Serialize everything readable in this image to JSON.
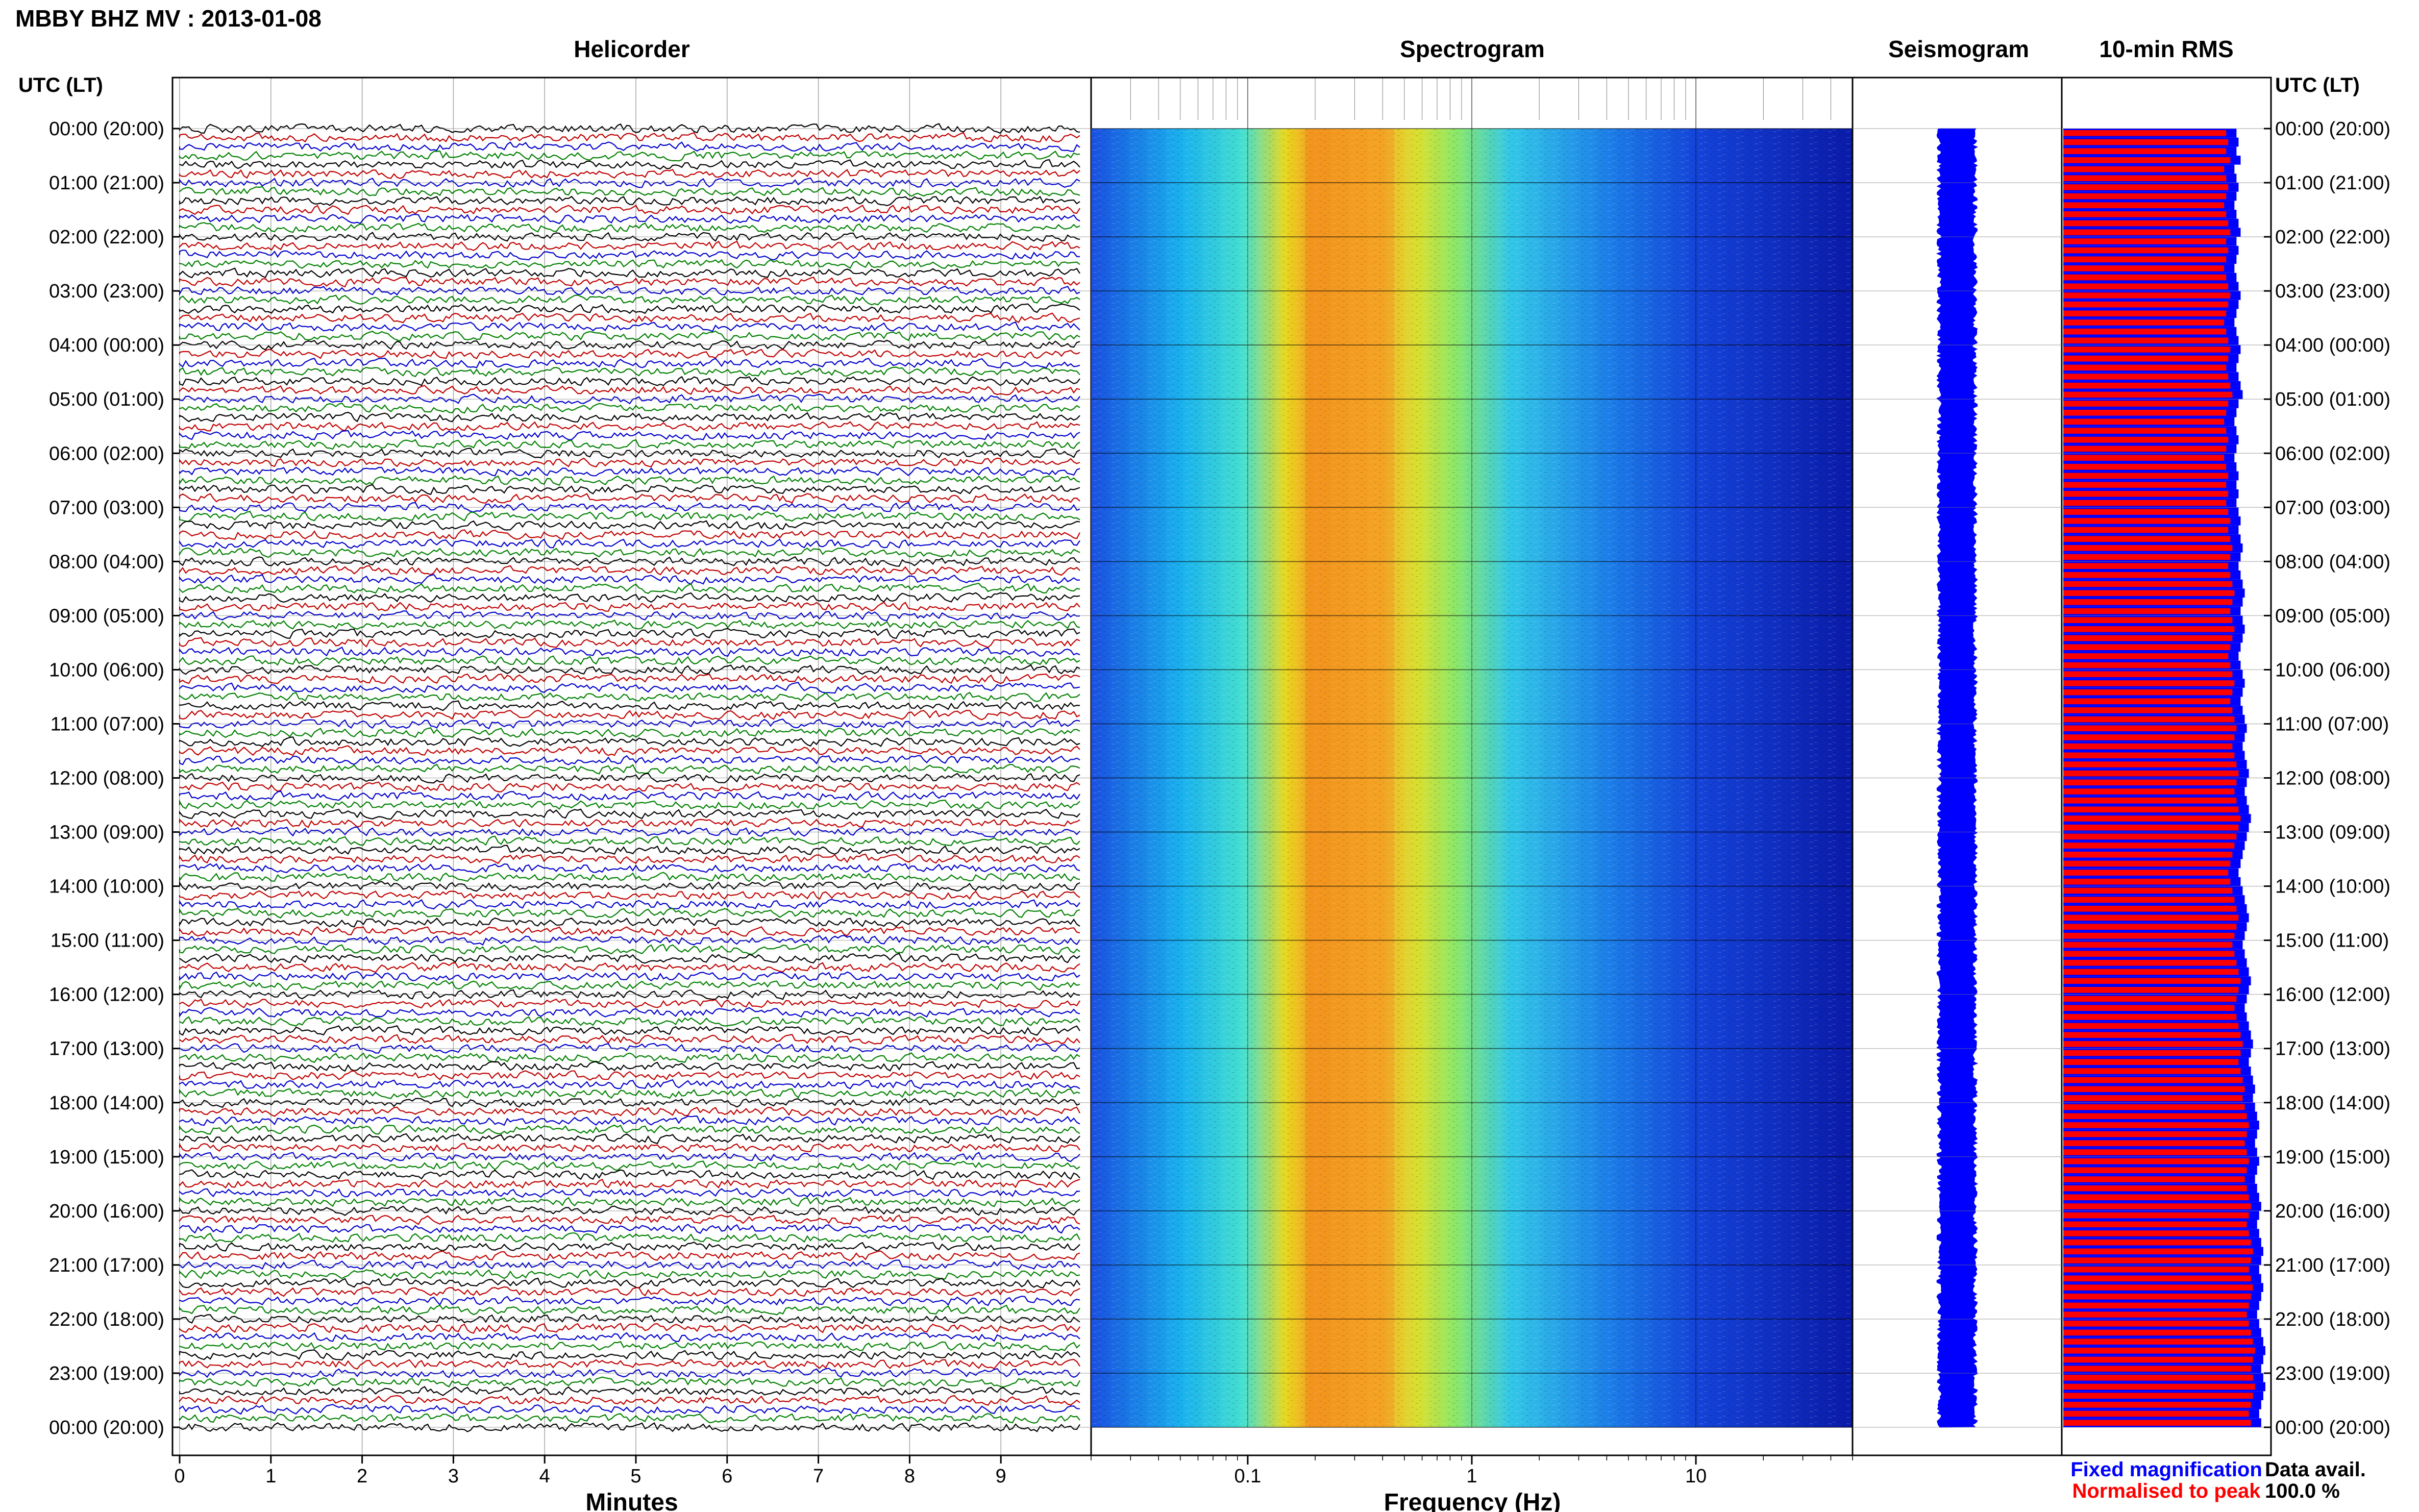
{
  "header": {
    "station_title": "MBBY BHZ MV : 2013-01-08",
    "utc_label_left": "UTC (LT)",
    "utc_label_right": "UTC (LT)"
  },
  "panels": {
    "helicorder": "Helicorder",
    "spectrogram": "Spectrogram",
    "seismogram": "Seismogram",
    "rms": "10-min RMS"
  },
  "legend": {
    "fixed": "Fixed magnification",
    "normalised": "Normalised to peak",
    "fixed_color": "#0000ff",
    "normalised_color": "#ff0000"
  },
  "data_avail": {
    "label": "Data avail.",
    "value": "100.0 %"
  },
  "chart_data": {
    "type": "heatmap",
    "time_labels": [
      "00:00 (20:00)",
      "01:00 (21:00)",
      "02:00 (22:00)",
      "03:00 (23:00)",
      "04:00 (00:00)",
      "05:00 (01:00)",
      "06:00 (02:00)",
      "07:00 (03:00)",
      "08:00 (04:00)",
      "09:00 (05:00)",
      "10:00 (06:00)",
      "11:00 (07:00)",
      "12:00 (08:00)",
      "13:00 (09:00)",
      "14:00 (10:00)",
      "15:00 (11:00)",
      "16:00 (12:00)",
      "17:00 (13:00)",
      "18:00 (14:00)",
      "19:00 (15:00)",
      "20:00 (16:00)",
      "21:00 (17:00)",
      "22:00 (18:00)",
      "23:00 (19:00)",
      "00:00 (20:00)"
    ],
    "helicorder": {
      "xlabel": "Minutes",
      "xticks": [
        0,
        1,
        2,
        3,
        4,
        5,
        6,
        7,
        8,
        9
      ],
      "xlim": [
        0,
        10
      ],
      "line_colors": [
        "#000000",
        "#c00000",
        "#0000cc",
        "#008000"
      ]
    },
    "spectrogram": {
      "xlabel": "Frequency (Hz)",
      "xscale": "log",
      "xlim": [
        0.02,
        50
      ],
      "xticks": [
        {
          "value": 0.1,
          "label": "0.1"
        },
        {
          "value": 1,
          "label": "1"
        },
        {
          "value": 10,
          "label": "10"
        }
      ],
      "colormap": "jet",
      "peak_band_hz": [
        0.18,
        0.45
      ]
    },
    "seismogram": {
      "color": "#0000ff"
    },
    "rms": {
      "bar_color_fixed": "#0000ff",
      "bar_color_normalised": "#ff0000",
      "fixed_fraction": [
        0.84,
        0.85,
        0.84,
        0.86,
        0.83,
        0.84,
        0.85,
        0.84,
        0.83,
        0.84,
        0.85,
        0.86,
        0.84,
        0.85,
        0.84,
        0.83,
        0.84,
        0.85,
        0.86,
        0.85,
        0.84,
        0.83,
        0.84,
        0.85,
        0.86,
        0.85,
        0.84,
        0.85,
        0.86,
        0.87,
        0.85,
        0.84,
        0.83,
        0.84,
        0.85,
        0.84,
        0.83,
        0.84,
        0.85,
        0.84,
        0.85,
        0.84,
        0.85,
        0.86,
        0.85,
        0.86,
        0.87,
        0.86,
        0.85,
        0.86,
        0.87,
        0.88,
        0.87,
        0.86,
        0.87,
        0.88,
        0.87,
        0.86,
        0.85,
        0.86,
        0.87,
        0.88,
        0.87,
        0.86,
        0.87,
        0.88,
        0.89,
        0.88,
        0.87,
        0.88,
        0.89,
        0.9,
        0.89,
        0.88,
        0.89,
        0.9,
        0.91,
        0.9,
        0.89,
        0.88,
        0.87,
        0.86,
        0.85,
        0.86,
        0.87,
        0.88,
        0.89,
        0.9,
        0.89,
        0.88,
        0.87,
        0.88,
        0.89,
        0.9,
        0.91,
        0.9,
        0.89,
        0.88,
        0.89,
        0.9,
        0.91,
        0.92,
        0.91,
        0.9,
        0.91,
        0.92,
        0.93,
        0.92,
        0.93,
        0.94,
        0.95,
        0.94,
        0.93,
        0.94,
        0.95,
        0.94,
        0.93,
        0.94,
        0.95,
        0.96,
        0.95,
        0.94,
        0.95,
        0.96,
        0.97,
        0.96,
        0.95,
        0.96,
        0.97,
        0.96,
        0.95,
        0.94,
        0.95,
        0.96,
        0.97,
        0.98,
        0.97,
        0.96,
        0.97,
        0.98,
        0.97,
        0.96,
        0.95,
        0.96
      ],
      "normalised_fraction": [
        0.79,
        0.8,
        0.79,
        0.81,
        0.78,
        0.79,
        0.8,
        0.79,
        0.78,
        0.79,
        0.8,
        0.81,
        0.79,
        0.8,
        0.79,
        0.78,
        0.79,
        0.8,
        0.81,
        0.8,
        0.79,
        0.78,
        0.79,
        0.8,
        0.81,
        0.8,
        0.79,
        0.8,
        0.81,
        0.82,
        0.8,
        0.79,
        0.78,
        0.79,
        0.8,
        0.79,
        0.78,
        0.79,
        0.8,
        0.79,
        0.8,
        0.79,
        0.8,
        0.81,
        0.8,
        0.81,
        0.82,
        0.81,
        0.8,
        0.81,
        0.82,
        0.83,
        0.82,
        0.81,
        0.82,
        0.83,
        0.82,
        0.81,
        0.8,
        0.81,
        0.82,
        0.83,
        0.82,
        0.81,
        0.82,
        0.83,
        0.84,
        0.83,
        0.82,
        0.83,
        0.84,
        0.85,
        0.84,
        0.83,
        0.84,
        0.85,
        0.86,
        0.85,
        0.84,
        0.83,
        0.82,
        0.81,
        0.8,
        0.81,
        0.82,
        0.83,
        0.84,
        0.85,
        0.84,
        0.83,
        0.82,
        0.83,
        0.84,
        0.85,
        0.86,
        0.85,
        0.84,
        0.83,
        0.84,
        0.85,
        0.86,
        0.87,
        0.86,
        0.85,
        0.86,
        0.87,
        0.88,
        0.87,
        0.88,
        0.89,
        0.9,
        0.89,
        0.88,
        0.89,
        0.9,
        0.89,
        0.88,
        0.89,
        0.9,
        0.91,
        0.9,
        0.89,
        0.9,
        0.91,
        0.92,
        0.91,
        0.9,
        0.91,
        0.92,
        0.91,
        0.9,
        0.89,
        0.9,
        0.91,
        0.92,
        0.93,
        0.92,
        0.91,
        0.92,
        0.93,
        0.92,
        0.91,
        0.9,
        0.91
      ]
    }
  }
}
